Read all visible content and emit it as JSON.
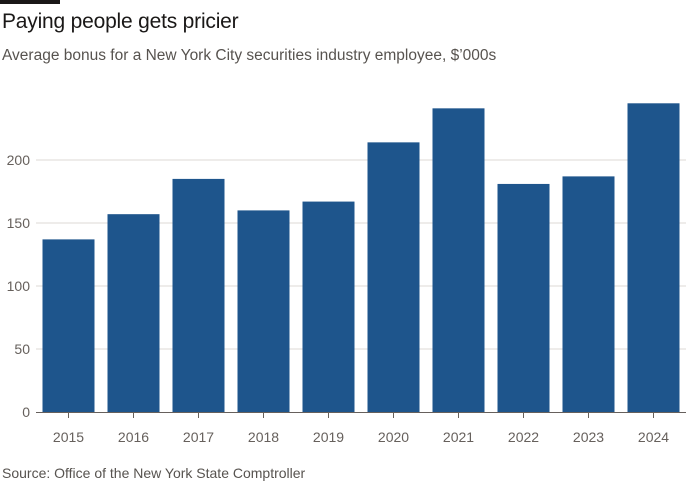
{
  "header": {
    "title": "Paying people gets pricier",
    "subtitle": "Average bonus for a New York City securities industry employee, $’000s"
  },
  "footer": {
    "source": "Source: Office of the New York State Comptroller"
  },
  "colors": {
    "bar": "#1e558c",
    "grid": "#dcd9d5",
    "axis": "#66605c"
  },
  "chart_data": {
    "type": "bar",
    "title": "Paying people gets pricier",
    "subtitle": "Average bonus for a New York City securities industry employee, $’000s",
    "xlabel": "",
    "ylabel": "",
    "categories": [
      "2015",
      "2016",
      "2017",
      "2018",
      "2019",
      "2020",
      "2021",
      "2022",
      "2023",
      "2024"
    ],
    "values": [
      137,
      157,
      185,
      160,
      167,
      214,
      241,
      181,
      187,
      245
    ],
    "ylim": [
      0,
      250
    ],
    "yticks": [
      0,
      50,
      100,
      150,
      200
    ],
    "grid": true,
    "legend": "none"
  }
}
